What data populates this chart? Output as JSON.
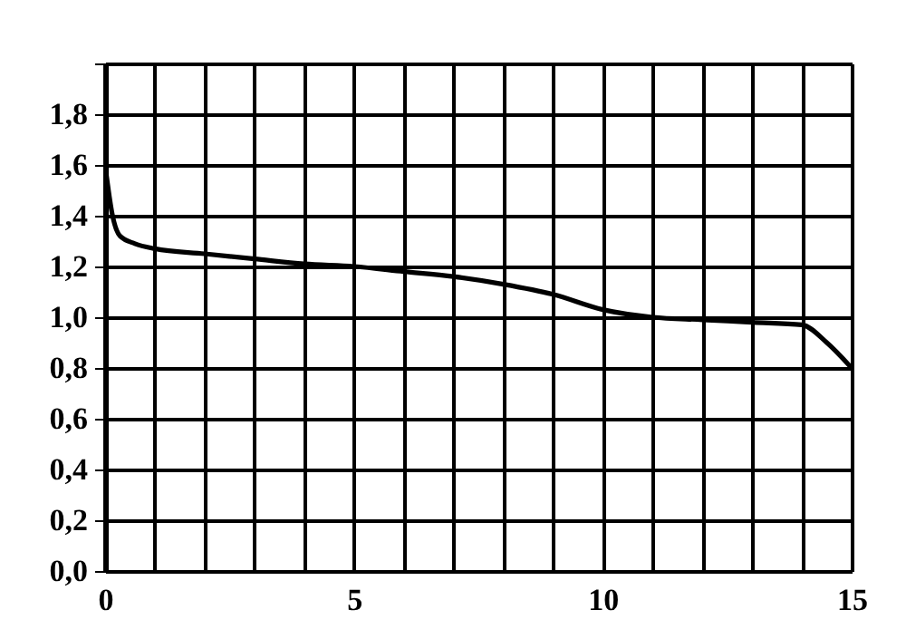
{
  "chart_data": {
    "type": "line",
    "x": [
      0,
      0.15,
      0.3,
      0.6,
      1,
      2,
      3,
      4,
      5,
      6,
      7,
      8,
      9,
      10,
      11,
      12,
      13,
      14,
      14.5,
      15
    ],
    "series": [
      {
        "color": "#000000",
        "values": [
          1.6,
          1.4,
          1.32,
          1.29,
          1.27,
          1.25,
          1.23,
          1.21,
          1.2,
          1.18,
          1.16,
          1.13,
          1.09,
          1.03,
          1.0,
          0.99,
          0.98,
          0.97,
          0.9,
          0.8
        ]
      }
    ],
    "xlim": [
      0,
      15
    ],
    "xticks": [
      0,
      {
        "value": 1,
        "label": null
      },
      {
        "value": 2,
        "label": null
      },
      {
        "value": 3,
        "label": null
      },
      {
        "value": 4,
        "label": null
      },
      5,
      {
        "value": 6,
        "label": null
      },
      {
        "value": 7,
        "label": null
      },
      {
        "value": 8,
        "label": null
      },
      {
        "value": 9,
        "label": null
      },
      10,
      {
        "value": 11,
        "label": null
      },
      {
        "value": 12,
        "label": null
      },
      {
        "value": 13,
        "label": null
      },
      {
        "value": 14,
        "label": null
      },
      15
    ],
    "ylim": [
      0,
      2
    ],
    "yticks": [
      {
        "value": 0,
        "label": "0,0"
      },
      {
        "value": 0.2,
        "label": "0,2"
      },
      {
        "value": 0.4,
        "label": "0,4"
      },
      {
        "value": 0.6,
        "label": "0,6"
      },
      {
        "value": 0.8,
        "label": "0,8"
      },
      {
        "value": 1.0,
        "label": "1,0"
      },
      {
        "value": 1.2,
        "label": "1,2"
      },
      {
        "value": 1.4,
        "label": "1,4"
      },
      {
        "value": 1.6,
        "label": "1,6"
      },
      {
        "value": 1.8,
        "label": "1,8"
      },
      {
        "value": 2.0,
        "label": null
      }
    ],
    "grid": true,
    "marker": "none",
    "line_style": "solid"
  }
}
